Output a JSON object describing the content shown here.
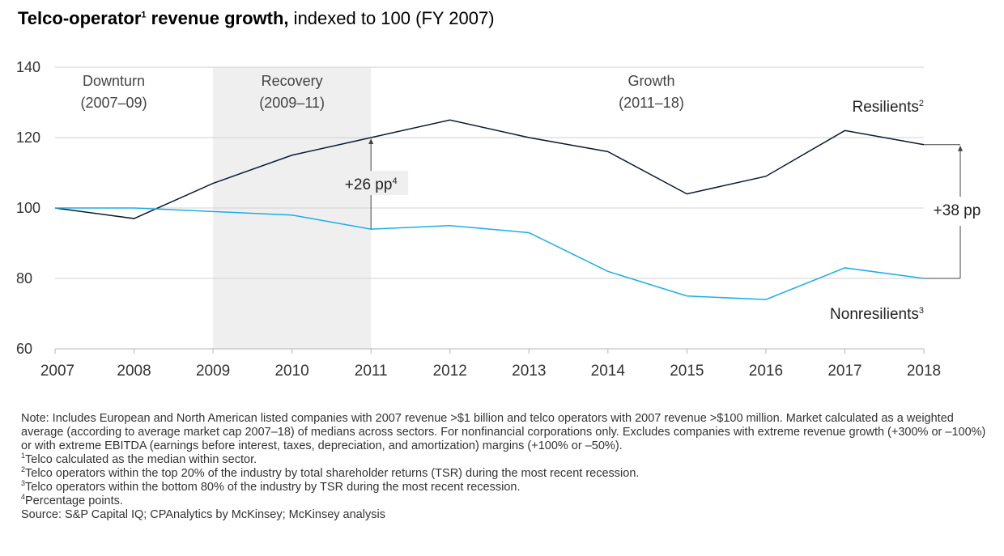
{
  "title": {
    "bold": "Telco-operator",
    "bold_sup": "1",
    "bold_rest": " revenue growth,",
    "normal": " indexed to 100 (FY 2007)"
  },
  "chart_data": {
    "type": "line",
    "x": [
      2007,
      2008,
      2009,
      2010,
      2011,
      2012,
      2013,
      2014,
      2015,
      2016,
      2017,
      2018
    ],
    "ylim": [
      60,
      140
    ],
    "yticks": [
      60,
      80,
      100,
      120,
      140
    ],
    "xtick_labels": [
      "2007",
      "2008",
      "2009",
      "2010",
      "2011",
      "2012",
      "2013",
      "2014",
      "2015",
      "2016",
      "2017",
      "2018"
    ],
    "ytick_labels": [
      "60",
      "80",
      "100",
      "120",
      "140"
    ],
    "grid": "horizontal",
    "series": [
      {
        "name": "Resilients",
        "sup": "2",
        "color": "#0b1a33",
        "values": [
          100,
          97,
          107,
          115,
          120,
          125,
          120,
          116,
          104,
          109,
          122,
          118
        ]
      },
      {
        "name": "Nonresilients",
        "sup": "3",
        "color": "#1aaee8",
        "values": [
          100,
          100,
          99,
          98,
          94,
          95,
          93,
          82,
          75,
          74,
          83,
          80
        ]
      }
    ],
    "shaded_region": {
      "from": 2009,
      "to": 2011,
      "color": "#efefef"
    },
    "phases": [
      {
        "line1": "Downturn",
        "line2": "(2007–09)"
      },
      {
        "line1": "Recovery",
        "line2": "(2009–11)"
      },
      {
        "line1": "Growth",
        "line2": "(2011–18)"
      }
    ],
    "annotations": [
      {
        "text": "+26 pp",
        "sup": "4",
        "at": 2011
      },
      {
        "text": "+38 pp",
        "at": 2018
      }
    ]
  },
  "notes": {
    "note": "Note: Includes European and North American listed companies with 2007 revenue >$1 billion and telco operators with 2007 revenue >$100 million. Market calculated as a weighted average (according to average market cap 2007–18) of medians across sectors. For nonfinancial corporations only. Excludes companies with extreme revenue growth (+300% or –100%) or with extreme EBITDA (earnings before interest, taxes, depreciation, and amortization) margins (+100% or –50%).",
    "footnotes": [
      {
        "sup": "1",
        "text": "Telco calculated as the median within sector."
      },
      {
        "sup": "2",
        "text": "Telco operators within the top 20% of the industry by total shareholder returns (TSR) during the most recent recession."
      },
      {
        "sup": "3",
        "text": "Telco operators within the bottom 80% of the industry by TSR during the most recent recession."
      },
      {
        "sup": "4",
        "text": "Percentage points."
      }
    ],
    "source": "Source: S&P Capital IQ; CPAnalytics by McKinsey; McKinsey analysis"
  }
}
